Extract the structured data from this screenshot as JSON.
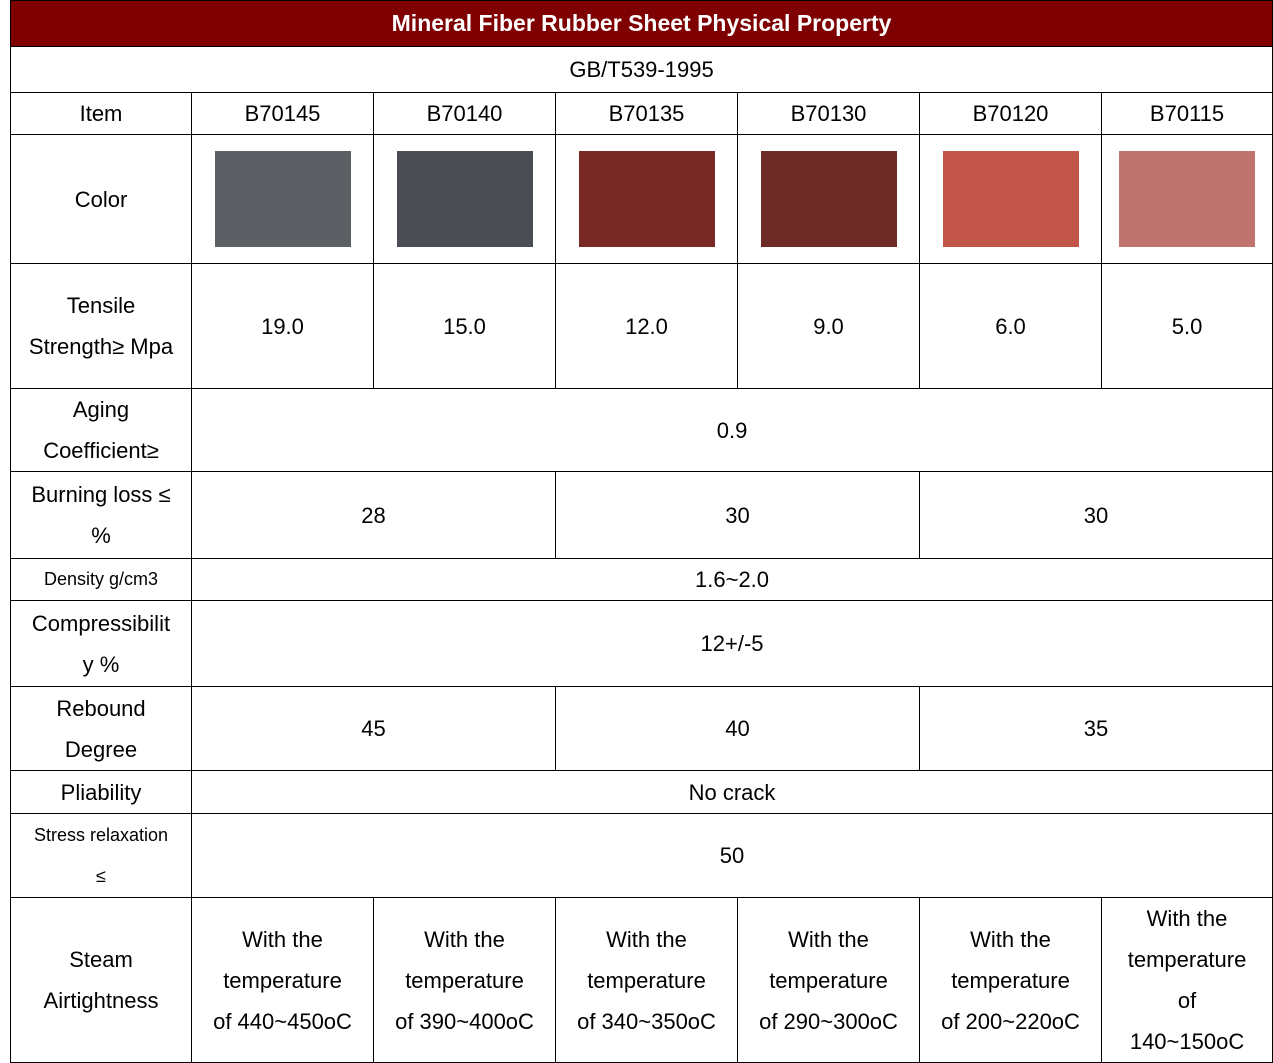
{
  "title": "Mineral Fiber Rubber Sheet   Physical Property",
  "standard": "GB/T539-1995",
  "header": {
    "item": "Item",
    "grades": [
      "B70145",
      "B70140",
      "B70135",
      "B70130",
      "B70120",
      "B70115"
    ]
  },
  "color_label": "Color",
  "rows": [
    {
      "label": "Tensile Strength≥ Mpa",
      "cells": [
        "19.0",
        "15.0",
        "12.0",
        "9.0",
        "6.0",
        "5.0"
      ]
    },
    {
      "label": "Aging Coefficient≥",
      "cells": [
        "0.9"
      ]
    },
    {
      "label": "Burning loss ≤ %",
      "cells": [
        "28",
        "30",
        "30"
      ]
    },
    {
      "label": "Density g/cm3",
      "cells": [
        "1.6~2.0"
      ]
    },
    {
      "label": "Compressibility %",
      "cells": [
        "12+/-5"
      ]
    },
    {
      "label": "Rebound Degree",
      "cells": [
        "45",
        "40",
        "35"
      ]
    },
    {
      "label": "Pliability",
      "cells": [
        "No crack"
      ]
    },
    {
      "label": "Stress relaxation ≤",
      "cells": [
        "50"
      ]
    },
    {
      "label": "Steam Airtightness",
      "cells": [
        "With the temperature of 440~450oC",
        "With the temperature of 390~400oC",
        "With the temperature of 340~350oC",
        "With the temperature of 290~300oC",
        "With the temperature of 200~220oC",
        "With the temperature of 140~150oC"
      ]
    }
  ]
}
